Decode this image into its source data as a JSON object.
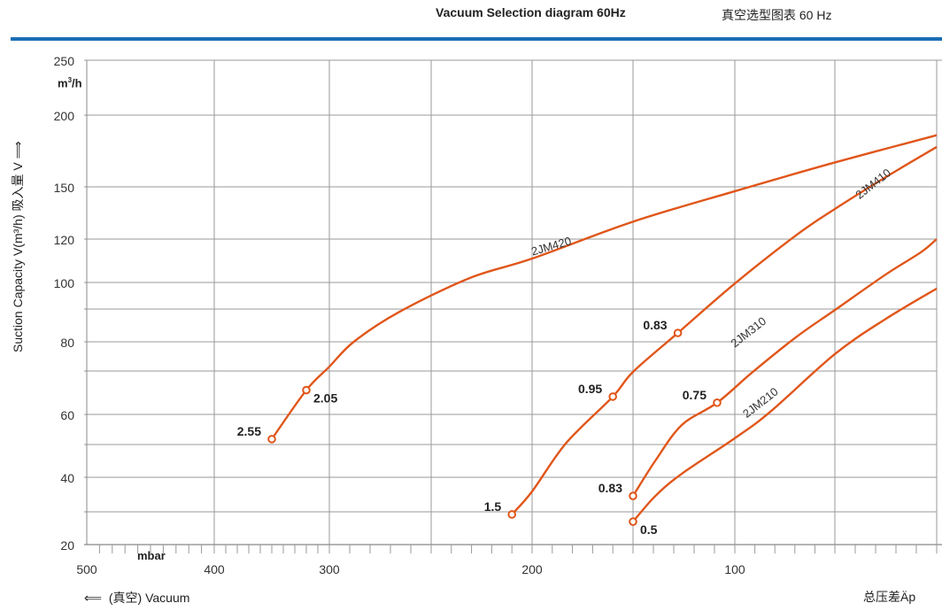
{
  "header": {
    "title": "Vacuum Selection diagram 60Hz",
    "title_cn": "真空选型图表 60 Hz",
    "accent_color": "#1b6db4"
  },
  "chart_data": {
    "type": "line",
    "title": "Vacuum Selection diagram 60Hz",
    "xlabel": "mbar",
    "xlabel_note": "(真空) Vacuum",
    "xlabel_right": "总压差Äp",
    "ylabel": "Suction Capacity V(m³/h) 吸入量 V",
    "yunit": "m³/h",
    "xlim": [
      500,
      0
    ],
    "ylim": [
      20,
      250
    ],
    "x_ticks": [
      500,
      400,
      300,
      200,
      100
    ],
    "x_grid": [
      400,
      300,
      250,
      200,
      150,
      100,
      50
    ],
    "y_ticks": [
      250,
      200,
      150,
      120,
      100,
      80,
      60,
      40,
      20
    ],
    "y_grid": [
      250,
      200,
      150,
      120,
      100,
      90,
      80,
      70,
      60,
      50,
      40,
      30,
      20
    ],
    "grid": true,
    "line_color": "#e0561a",
    "series": [
      {
        "name": "2JM420",
        "label_at": [
          190,
          115
        ],
        "x": [
          350,
          320,
          300,
          288,
          266,
          231,
          200,
          150,
          100,
          50,
          0
        ],
        "y": [
          51.8,
          65.6,
          71.5,
          80,
          89,
          102,
          111,
          130,
          147.5,
          167,
          186
        ],
        "markers": [
          {
            "x": 350,
            "y": 51.8,
            "label": "2.55",
            "side": "left"
          },
          {
            "x": 320,
            "y": 65.6,
            "label": "2.05",
            "side": "right"
          }
        ]
      },
      {
        "name": "2JM410",
        "label_at": [
          30,
          150
        ],
        "x": [
          210,
          200,
          183,
          160,
          150,
          128,
          100,
          69,
          50,
          25,
          0
        ],
        "y": [
          29.2,
          35.9,
          50.6,
          64.1,
          69.8,
          82.7,
          99.6,
          122.5,
          137.3,
          156.8,
          177.8
        ],
        "markers": [
          {
            "x": 210,
            "y": 29.2,
            "label": "1.5",
            "side": "left"
          },
          {
            "x": 160,
            "y": 64.1,
            "label": "0.95",
            "side": "left"
          },
          {
            "x": 128,
            "y": 82.7,
            "label": "0.83",
            "side": "left"
          }
        ]
      },
      {
        "name": "2JM310",
        "label_at": [
          92,
          82
        ],
        "x": [
          150,
          139,
          126,
          108.7,
          91,
          69,
          50,
          25,
          7.8,
          0
        ],
        "y": [
          34.6,
          45.1,
          56.5,
          62.7,
          69.8,
          81.6,
          89.7,
          103.7,
          113.9,
          120
        ],
        "markers": [
          {
            "x": 150,
            "y": 34.6,
            "label": "0.83",
            "side": "left"
          },
          {
            "x": 108.7,
            "y": 62.7,
            "label": "0.75",
            "side": "left"
          }
        ]
      },
      {
        "name": "2JM210",
        "label_at": [
          86,
          62
        ],
        "x": [
          150,
          139,
          126,
          100,
          82.3,
          50,
          25,
          0
        ],
        "y": [
          27,
          34.6,
          41.1,
          52.1,
          60.6,
          75.8,
          87,
          97.7
        ],
        "markers": [
          {
            "x": 150,
            "y": 27,
            "label": "0.5",
            "side": "right"
          }
        ]
      }
    ]
  }
}
